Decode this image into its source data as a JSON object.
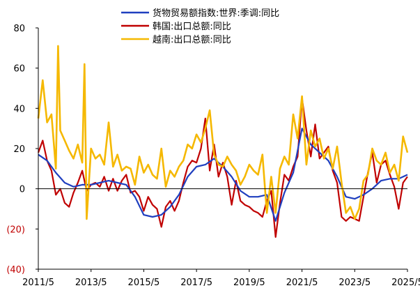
{
  "chart_data": {
    "type": "line",
    "title": "",
    "xlabel": "",
    "ylabel": "",
    "ylim": [
      -40,
      80
    ],
    "yticks": [
      80,
      60,
      40,
      20,
      0,
      -20,
      -40
    ],
    "ytick_labels": [
      "80",
      "60",
      "40",
      "20",
      "0",
      "(20)",
      "(40)"
    ],
    "xlim": [
      "2011/5",
      "2025/5"
    ],
    "xtick_labels": [
      "2011/5",
      "2013/5",
      "2015/5",
      "2017/5",
      "2019/5",
      "2021/5",
      "2023/5",
      "2025/5"
    ],
    "grid": false,
    "legend_position": "top-center",
    "colors": {
      "axis": "#000000",
      "negative_tick": "#c00000"
    },
    "series": [
      {
        "name": "货物贸易额指数:世界:季调:同比",
        "color": "#1f3fbf",
        "points": [
          [
            "2011/5",
            17
          ],
          [
            "2011/9",
            14
          ],
          [
            "2012/1",
            8
          ],
          [
            "2012/5",
            3
          ],
          [
            "2012/9",
            1
          ],
          [
            "2013/1",
            2
          ],
          [
            "2013/5",
            2
          ],
          [
            "2013/9",
            3
          ],
          [
            "2014/1",
            4
          ],
          [
            "2014/5",
            3
          ],
          [
            "2014/9",
            2
          ],
          [
            "2015/1",
            -4
          ],
          [
            "2015/5",
            -13
          ],
          [
            "2015/9",
            -14
          ],
          [
            "2016/1",
            -13
          ],
          [
            "2016/5",
            -9
          ],
          [
            "2016/9",
            -3
          ],
          [
            "2017/1",
            6
          ],
          [
            "2017/5",
            11
          ],
          [
            "2017/9",
            12
          ],
          [
            "2018/1",
            15
          ],
          [
            "2018/5",
            11
          ],
          [
            "2018/9",
            6
          ],
          [
            "2019/1",
            -1
          ],
          [
            "2019/5",
            -4
          ],
          [
            "2019/9",
            -4
          ],
          [
            "2020/1",
            -3
          ],
          [
            "2020/5",
            -16
          ],
          [
            "2020/9",
            -2
          ],
          [
            "2021/1",
            8
          ],
          [
            "2021/5",
            30
          ],
          [
            "2021/9",
            22
          ],
          [
            "2022/1",
            18
          ],
          [
            "2022/5",
            14
          ],
          [
            "2022/9",
            6
          ],
          [
            "2023/1",
            -4
          ],
          [
            "2023/5",
            -5
          ],
          [
            "2023/9",
            -3
          ],
          [
            "2024/1",
            0
          ],
          [
            "2024/5",
            4
          ],
          [
            "2024/9",
            5
          ],
          [
            "2025/1",
            5
          ],
          [
            "2025/5",
            7
          ]
        ]
      },
      {
        "name": "韩国:出口总额:同比",
        "color": "#c00000",
        "points": [
          [
            "2011/5",
            18
          ],
          [
            "2011/7",
            24
          ],
          [
            "2011/9",
            14
          ],
          [
            "2011/11",
            9
          ],
          [
            "2012/1",
            -3
          ],
          [
            "2012/3",
            0
          ],
          [
            "2012/5",
            -7
          ],
          [
            "2012/7",
            -9
          ],
          [
            "2012/9",
            -2
          ],
          [
            "2012/11",
            3
          ],
          [
            "2013/1",
            9
          ],
          [
            "2013/3",
            -1
          ],
          [
            "2013/5",
            2
          ],
          [
            "2013/7",
            3
          ],
          [
            "2013/9",
            1
          ],
          [
            "2013/11",
            6
          ],
          [
            "2014/1",
            -1
          ],
          [
            "2014/3",
            5
          ],
          [
            "2014/5",
            -1
          ],
          [
            "2014/7",
            4
          ],
          [
            "2014/9",
            7
          ],
          [
            "2014/11",
            -2
          ],
          [
            "2015/1",
            -1
          ],
          [
            "2015/3",
            -4
          ],
          [
            "2015/5",
            -11
          ],
          [
            "2015/7",
            -4
          ],
          [
            "2015/9",
            -8
          ],
          [
            "2015/11",
            -10
          ],
          [
            "2016/1",
            -19
          ],
          [
            "2016/3",
            -9
          ],
          [
            "2016/5",
            -6
          ],
          [
            "2016/7",
            -11
          ],
          [
            "2016/9",
            -6
          ],
          [
            "2016/11",
            3
          ],
          [
            "2017/1",
            11
          ],
          [
            "2017/3",
            14
          ],
          [
            "2017/5",
            13
          ],
          [
            "2017/7",
            20
          ],
          [
            "2017/9",
            35
          ],
          [
            "2017/11",
            9
          ],
          [
            "2018/1",
            22
          ],
          [
            "2018/3",
            6
          ],
          [
            "2018/5",
            13
          ],
          [
            "2018/7",
            6
          ],
          [
            "2018/9",
            -8
          ],
          [
            "2018/11",
            4
          ],
          [
            "2019/1",
            -6
          ],
          [
            "2019/3",
            -8
          ],
          [
            "2019/5",
            -9
          ],
          [
            "2019/7",
            -11
          ],
          [
            "2019/9",
            -12
          ],
          [
            "2019/11",
            -14
          ],
          [
            "2020/1",
            -6
          ],
          [
            "2020/3",
            -1
          ],
          [
            "2020/5",
            -24
          ],
          [
            "2020/7",
            -7
          ],
          [
            "2020/9",
            7
          ],
          [
            "2020/11",
            4
          ],
          [
            "2021/1",
            11
          ],
          [
            "2021/3",
            16
          ],
          [
            "2021/5",
            45
          ],
          [
            "2021/7",
            29
          ],
          [
            "2021/9",
            16
          ],
          [
            "2021/11",
            32
          ],
          [
            "2022/1",
            15
          ],
          [
            "2022/3",
            18
          ],
          [
            "2022/5",
            21
          ],
          [
            "2022/7",
            9
          ],
          [
            "2022/9",
            3
          ],
          [
            "2022/11",
            -14
          ],
          [
            "2023/1",
            -16
          ],
          [
            "2023/3",
            -14
          ],
          [
            "2023/5",
            -15
          ],
          [
            "2023/7",
            -16
          ],
          [
            "2023/9",
            -4
          ],
          [
            "2023/11",
            8
          ],
          [
            "2024/1",
            18
          ],
          [
            "2024/3",
            3
          ],
          [
            "2024/5",
            12
          ],
          [
            "2024/7",
            14
          ],
          [
            "2024/9",
            7
          ],
          [
            "2024/11",
            1
          ],
          [
            "2025/1",
            -10
          ],
          [
            "2025/3",
            3
          ],
          [
            "2025/5",
            6
          ]
        ]
      },
      {
        "name": "越南:出口总额:同比",
        "color": "#f5b800",
        "points": [
          [
            "2011/5",
            35
          ],
          [
            "2011/7",
            54
          ],
          [
            "2011/9",
            33
          ],
          [
            "2011/11",
            37
          ],
          [
            "2012/1",
            10
          ],
          [
            "2012/2",
            71
          ],
          [
            "2012/3",
            29
          ],
          [
            "2012/5",
            24
          ],
          [
            "2012/7",
            19
          ],
          [
            "2012/9",
            15
          ],
          [
            "2012/11",
            22
          ],
          [
            "2013/1",
            13
          ],
          [
            "2013/2",
            62
          ],
          [
            "2013/3",
            -15
          ],
          [
            "2013/5",
            20
          ],
          [
            "2013/7",
            15
          ],
          [
            "2013/9",
            17
          ],
          [
            "2013/11",
            12
          ],
          [
            "2014/1",
            33
          ],
          [
            "2014/3",
            11
          ],
          [
            "2014/5",
            17
          ],
          [
            "2014/7",
            9
          ],
          [
            "2014/9",
            11
          ],
          [
            "2014/11",
            10
          ],
          [
            "2015/1",
            2
          ],
          [
            "2015/3",
            16
          ],
          [
            "2015/5",
            8
          ],
          [
            "2015/7",
            12
          ],
          [
            "2015/9",
            7
          ],
          [
            "2015/11",
            5
          ],
          [
            "2016/1",
            20
          ],
          [
            "2016/3",
            1
          ],
          [
            "2016/5",
            9
          ],
          [
            "2016/7",
            6
          ],
          [
            "2016/9",
            11
          ],
          [
            "2016/11",
            14
          ],
          [
            "2017/1",
            22
          ],
          [
            "2017/3",
            20
          ],
          [
            "2017/5",
            27
          ],
          [
            "2017/7",
            23
          ],
          [
            "2017/9",
            30
          ],
          [
            "2017/11",
            39
          ],
          [
            "2018/1",
            17
          ],
          [
            "2018/3",
            12
          ],
          [
            "2018/5",
            11
          ],
          [
            "2018/7",
            16
          ],
          [
            "2018/9",
            12
          ],
          [
            "2018/11",
            9
          ],
          [
            "2019/1",
            2
          ],
          [
            "2019/3",
            6
          ],
          [
            "2019/5",
            12
          ],
          [
            "2019/7",
            9
          ],
          [
            "2019/9",
            7
          ],
          [
            "2019/11",
            17
          ],
          [
            "2020/1",
            -12
          ],
          [
            "2020/3",
            6
          ],
          [
            "2020/5",
            -12
          ],
          [
            "2020/7",
            10
          ],
          [
            "2020/9",
            16
          ],
          [
            "2020/11",
            12
          ],
          [
            "2021/1",
            37
          ],
          [
            "2021/3",
            25
          ],
          [
            "2021/5",
            46
          ],
          [
            "2021/7",
            12
          ],
          [
            "2021/9",
            29
          ],
          [
            "2021/11",
            21
          ],
          [
            "2022/1",
            25
          ],
          [
            "2022/3",
            15
          ],
          [
            "2022/5",
            20
          ],
          [
            "2022/7",
            10
          ],
          [
            "2022/9",
            21
          ],
          [
            "2022/11",
            3
          ],
          [
            "2023/1",
            -12
          ],
          [
            "2023/3",
            -9
          ],
          [
            "2023/5",
            -15
          ],
          [
            "2023/7",
            -10
          ],
          [
            "2023/9",
            4
          ],
          [
            "2023/11",
            7
          ],
          [
            "2024/1",
            20
          ],
          [
            "2024/3",
            14
          ],
          [
            "2024/5",
            12
          ],
          [
            "2024/7",
            18
          ],
          [
            "2024/9",
            8
          ],
          [
            "2024/11",
            12
          ],
          [
            "2025/1",
            4
          ],
          [
            "2025/3",
            26
          ],
          [
            "2025/5",
            18
          ]
        ]
      }
    ]
  }
}
